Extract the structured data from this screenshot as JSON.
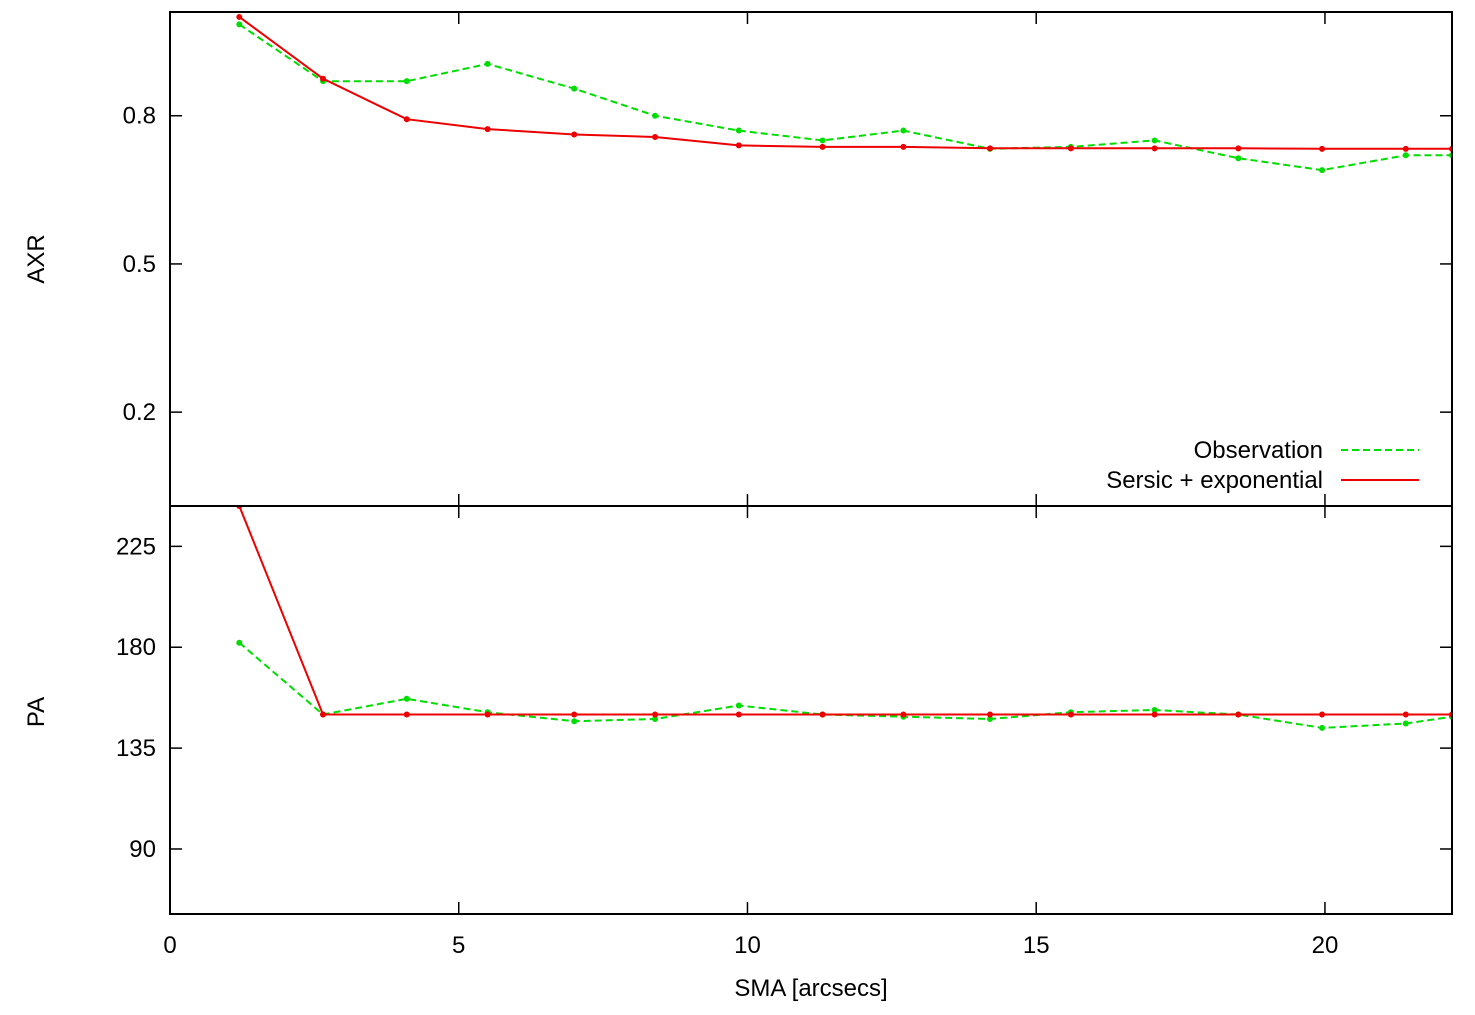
{
  "chart_data": {
    "type": "line",
    "xlabel": "SMA [arcsecs]",
    "xlim": [
      0,
      22.2
    ],
    "xticks": [
      0,
      5,
      10,
      15,
      20
    ],
    "x_tick_labels": [
      "0",
      "5",
      "10",
      "15",
      "20"
    ],
    "legend": {
      "placement": "bottom-right of top panel",
      "entries": [
        {
          "label": "Observation",
          "series": "observation"
        },
        {
          "label": "Sersic + exponential",
          "series": "model"
        }
      ]
    },
    "panels": [
      {
        "id": "axr",
        "ylabel": "AXR",
        "ylim": [
          0.01,
          1.01
        ],
        "yticks": [
          0.2,
          0.5,
          0.8
        ],
        "y_tick_labels": [
          "0.2",
          "0.5",
          "0.8"
        ],
        "series": [
          {
            "key": "observation",
            "color": "#00dd00",
            "style": "dashed",
            "x": [
              1.2,
              2.65,
              4.1,
              5.5,
              7.0,
              8.4,
              9.85,
              11.3,
              12.7,
              14.2,
              15.6,
              17.05,
              18.5,
              19.95,
              21.4,
              22.2
            ],
            "y": [
              0.985,
              0.87,
              0.87,
              0.905,
              0.855,
              0.8,
              0.77,
              0.75,
              0.77,
              0.733,
              0.737,
              0.75,
              0.714,
              0.69,
              0.72,
              0.72
            ]
          },
          {
            "key": "model",
            "color": "#ee0000",
            "style": "solid",
            "x": [
              1.2,
              2.65,
              4.1,
              5.5,
              7.0,
              8.4,
              9.85,
              11.3,
              12.7,
              14.2,
              15.6,
              17.05,
              18.5,
              19.95,
              21.4,
              22.2
            ],
            "y": [
              1.0,
              0.875,
              0.793,
              0.773,
              0.762,
              0.757,
              0.74,
              0.737,
              0.737,
              0.734,
              0.734,
              0.734,
              0.734,
              0.733,
              0.733,
              0.733
            ]
          }
        ]
      },
      {
        "id": "pa",
        "ylabel": "PA",
        "ylim": [
          61,
          243
        ],
        "yticks": [
          90,
          135,
          180,
          225
        ],
        "y_tick_labels": [
          "90",
          "135",
          "180",
          "225"
        ],
        "series": [
          {
            "key": "observation",
            "color": "#00dd00",
            "style": "dashed",
            "x": [
              1.2,
              2.65,
              4.1,
              5.5,
              7.0,
              8.4,
              9.85,
              11.3,
              12.7,
              14.2,
              15.6,
              17.05,
              18.5,
              19.95,
              21.4,
              22.2
            ],
            "y": [
              182,
              150,
              157,
              151,
              147,
              148,
              154,
              150,
              149,
              148,
              151,
              152,
              150,
              144,
              146,
              149
            ]
          },
          {
            "key": "model",
            "color": "#ee0000",
            "style": "solid",
            "x": [
              1.2,
              2.65,
              4.1,
              5.5,
              7.0,
              8.4,
              9.85,
              11.3,
              12.7,
              14.2,
              15.6,
              17.05,
              18.5,
              19.95,
              21.4,
              22.2
            ],
            "y": [
              243,
              150,
              150,
              150,
              150,
              150,
              150,
              150,
              150,
              150,
              150,
              150,
              150,
              150,
              150,
              150
            ]
          }
        ]
      }
    ]
  }
}
